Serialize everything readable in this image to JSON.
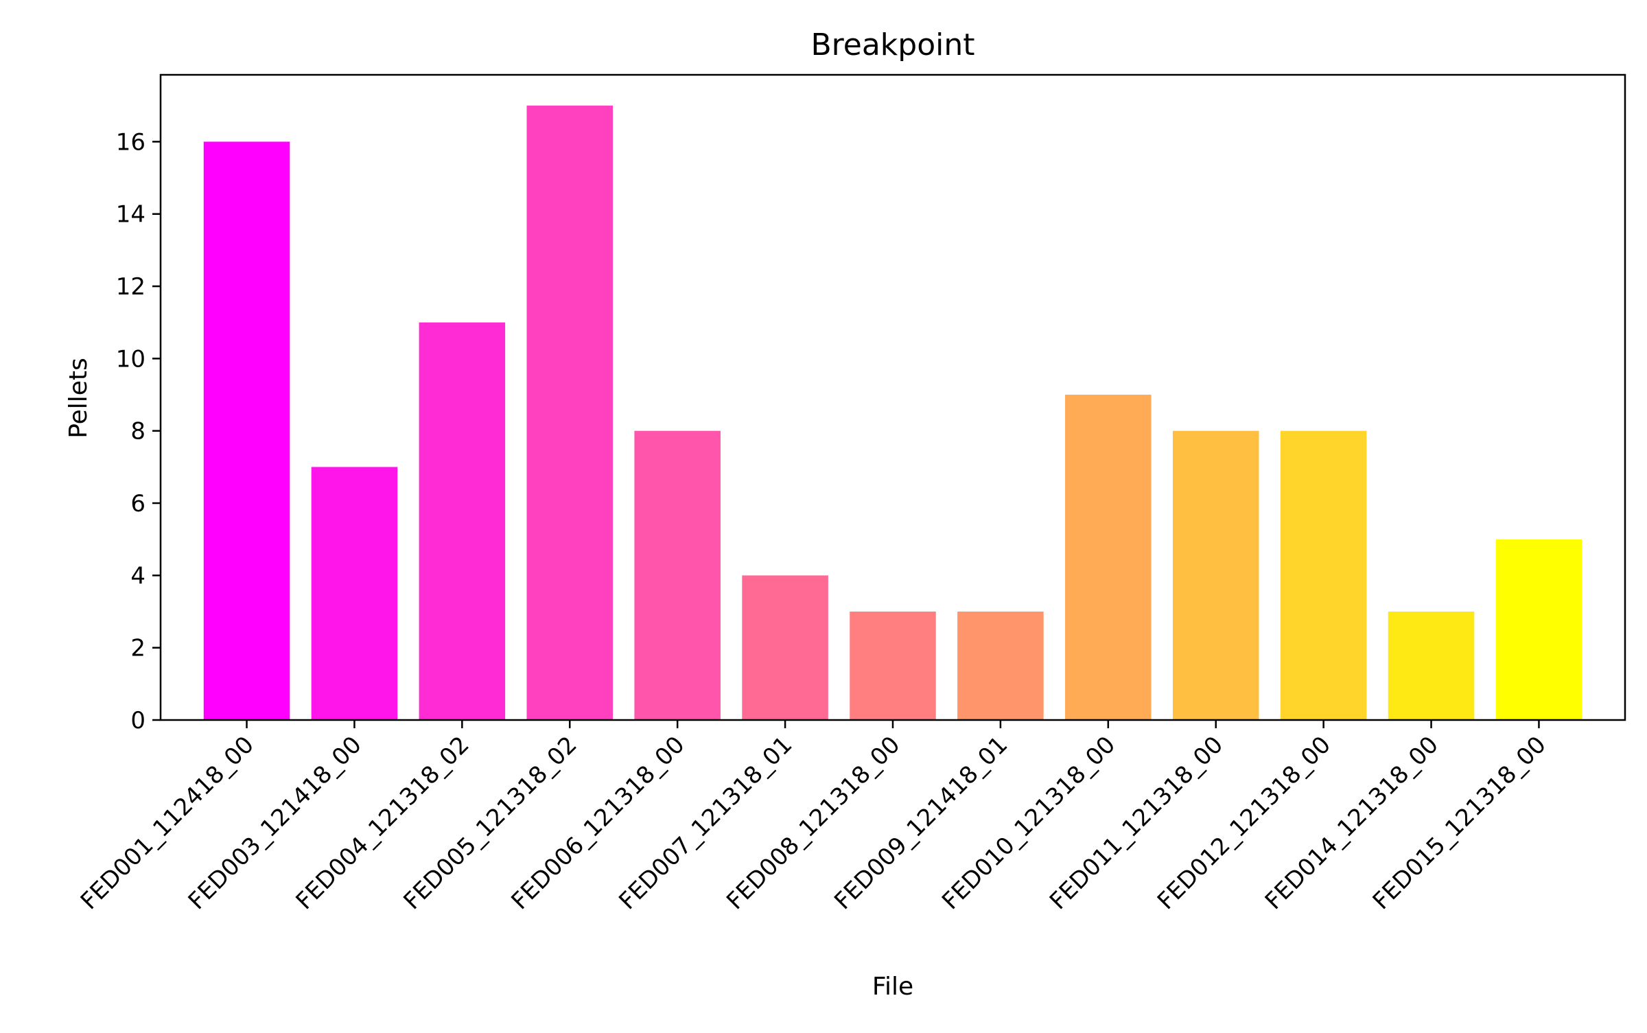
{
  "chart_data": {
    "type": "bar",
    "title": "Breakpoint",
    "xlabel": "File",
    "ylabel": "Pellets",
    "categories": [
      "FED001_112418_00",
      "FED003_121418_00",
      "FED004_121318_02",
      "FED005_121318_02",
      "FED006_121318_00",
      "FED007_121318_01",
      "FED008_121318_00",
      "FED009_121418_01",
      "FED010_121318_00",
      "FED011_121318_00",
      "FED012_121318_00",
      "FED014_121318_00",
      "FED015_121318_00"
    ],
    "values": [
      16,
      7,
      11,
      17,
      8,
      4,
      3,
      3,
      9,
      8,
      8,
      3,
      5
    ],
    "colors": [
      "#ff00ff",
      "#ff15e9",
      "#ff2bd4",
      "#ff40bf",
      "#ff55aa",
      "#ff6a95",
      "#ff7f80",
      "#ff956a",
      "#ffaa55",
      "#ffbf40",
      "#ffd42b",
      "#ffe915",
      "#ffff00"
    ],
    "ylim": [
      0,
      17.85
    ],
    "yticks": [
      0,
      2,
      4,
      6,
      8,
      10,
      12,
      14,
      16
    ],
    "grid": false,
    "legend": "none"
  }
}
